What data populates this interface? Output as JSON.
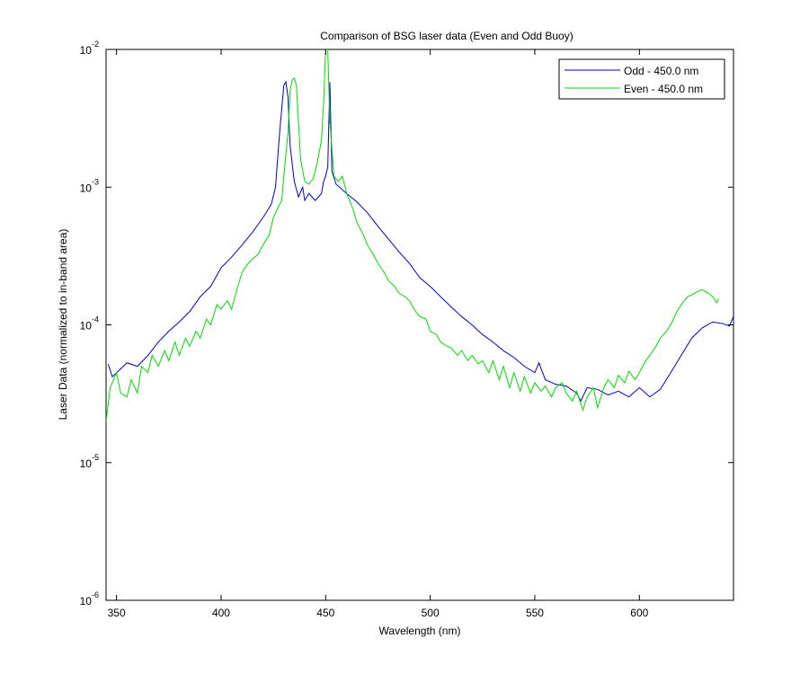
{
  "chart_data": {
    "type": "line",
    "title": "Comparison of BSG laser data (Even and Odd Buoy)",
    "xlabel": "Wavelength (nm)",
    "ylabel": "Laser Data (normalized to in-band area)",
    "xlim": [
      345,
      645
    ],
    "ylim": [
      1e-06,
      0.01
    ],
    "yscale": "log",
    "grid": false,
    "legend": "northeast",
    "xticks": [
      350,
      400,
      450,
      500,
      550,
      600
    ],
    "yticks": [
      {
        "value": 1e-06,
        "label": "10",
        "superscript": "-6"
      },
      {
        "value": 1e-05,
        "label": "10",
        "superscript": "-5"
      },
      {
        "value": 0.0001,
        "label": "10",
        "superscript": "-4"
      },
      {
        "value": 0.001,
        "label": "10",
        "superscript": "-3"
      },
      {
        "value": 0.01,
        "label": "10",
        "superscript": "-2"
      }
    ],
    "series": [
      {
        "name": "Odd - 450.0 nm",
        "color": "#0000c8",
        "x": [
          346,
          348,
          355,
          360,
          365,
          370,
          375,
          380,
          385,
          390,
          395,
          400,
          405,
          410,
          415,
          420,
          424,
          426,
          428,
          430,
          431,
          432,
          433,
          435,
          437,
          439,
          440,
          442,
          445,
          448,
          449,
          450,
          451,
          452,
          453,
          455,
          460,
          465,
          470,
          475,
          480,
          485,
          490,
          495,
          500,
          505,
          510,
          515,
          520,
          525,
          530,
          535,
          540,
          545,
          550,
          552,
          555,
          560,
          565,
          570,
          572,
          575,
          580,
          585,
          590,
          595,
          600,
          605,
          610,
          615,
          620,
          625,
          630,
          635,
          640,
          643,
          645
        ],
        "values": [
          5.2e-05,
          4.2e-05,
          5.3e-05,
          5e-05,
          6e-05,
          7.5e-05,
          9e-05,
          0.000105,
          0.000125,
          0.00016,
          0.00019,
          0.00026,
          0.00031,
          0.00038,
          0.00047,
          0.0006,
          0.00075,
          0.001,
          0.0025,
          0.0055,
          0.0058,
          0.0045,
          0.002,
          0.0011,
          0.00085,
          0.001,
          0.0008,
          0.0009,
          0.0008,
          0.0009,
          0.0011,
          0.0012,
          0.0014,
          0.0058,
          0.0013,
          0.00105,
          0.0009,
          0.00078,
          0.00065,
          0.00052,
          0.00042,
          0.00034,
          0.00028,
          0.00022,
          0.00019,
          0.00016,
          0.000135,
          0.000115,
          0.0001,
          8.5e-05,
          7.5e-05,
          6.5e-05,
          5.8e-05,
          5e-05,
          4.5e-05,
          5.3e-05,
          4e-05,
          3.7e-05,
          3.6e-05,
          3.2e-05,
          2.8e-05,
          3.5e-05,
          3.4e-05,
          3.1e-05,
          3.3e-05,
          3e-05,
          3.5e-05,
          3e-05,
          3.4e-05,
          4.5e-05,
          6e-05,
          8e-05,
          9.5e-05,
          0.000105,
          0.000102,
          9.8e-05,
          0.000115
        ]
      },
      {
        "name": "Even - 450.0 nm",
        "color": "#00dc00",
        "x": [
          345,
          347,
          350,
          352,
          355,
          357,
          360,
          362,
          365,
          367,
          370,
          373,
          375,
          378,
          380,
          383,
          385,
          388,
          390,
          393,
          395,
          398,
          400,
          403,
          405,
          408,
          410,
          413,
          415,
          418,
          420,
          423,
          425,
          427,
          429,
          430,
          432,
          433,
          434,
          435,
          436,
          437,
          438,
          440,
          442,
          444,
          446,
          448,
          449,
          450,
          451,
          452,
          454,
          456,
          458,
          460,
          463,
          465,
          468,
          470,
          473,
          475,
          478,
          480,
          483,
          485,
          488,
          490,
          493,
          495,
          498,
          500,
          503,
          505,
          508,
          510,
          513,
          515,
          518,
          520,
          523,
          525,
          528,
          530,
          533,
          535,
          538,
          540,
          543,
          545,
          548,
          550,
          553,
          555,
          558,
          560,
          563,
          565,
          568,
          570,
          573,
          575,
          578,
          580,
          583,
          585,
          588,
          590,
          593,
          595,
          598,
          600,
          603,
          605,
          608,
          610,
          613,
          615,
          618,
          620,
          623,
          625,
          628,
          630,
          633,
          635,
          637,
          638
        ],
        "values": [
          2e-05,
          3.5e-05,
          4.5e-05,
          3.2e-05,
          3e-05,
          4e-05,
          3.2e-05,
          5e-05,
          4.5e-05,
          6e-05,
          5e-05,
          6.5e-05,
          5.5e-05,
          7.5e-05,
          6e-05,
          8e-05,
          7e-05,
          9e-05,
          8e-05,
          0.00011,
          0.0001,
          0.00014,
          0.00013,
          0.00015,
          0.00013,
          0.00019,
          0.00024,
          0.00028,
          0.0003,
          0.00033,
          0.00038,
          0.00045,
          0.0006,
          0.0007,
          0.0008,
          0.0012,
          0.0025,
          0.005,
          0.006,
          0.0062,
          0.0055,
          0.003,
          0.0016,
          0.0011,
          0.00105,
          0.00115,
          0.0015,
          0.0022,
          0.004,
          0.01,
          0.01,
          0.003,
          0.0012,
          0.0011,
          0.0012,
          0.0009,
          0.0007,
          0.00055,
          0.00045,
          0.00038,
          0.00032,
          0.00028,
          0.00024,
          0.00021,
          0.00019,
          0.00017,
          0.00016,
          0.00015,
          0.000125,
          0.000115,
          0.00011,
          9e-05,
          8.5e-05,
          7.5e-05,
          7e-05,
          6.8e-05,
          6e-05,
          6.5e-05,
          5.5e-05,
          6e-05,
          5.2e-05,
          5.5e-05,
          4.5e-05,
          5.5e-05,
          4e-05,
          5e-05,
          3.5e-05,
          4.5e-05,
          3.3e-05,
          4.2e-05,
          3.2e-05,
          3.8e-05,
          3.3e-05,
          3.6e-05,
          3e-05,
          3.5e-05,
          3.8e-05,
          3.2e-05,
          2.8e-05,
          3.3e-05,
          2.4e-05,
          3e-05,
          3.5e-05,
          2.5e-05,
          3.5e-05,
          4e-05,
          3.5e-05,
          4.3e-05,
          3.8e-05,
          4.6e-05,
          4e-05,
          4.5e-05,
          5.5e-05,
          6e-05,
          7e-05,
          8e-05,
          9e-05,
          0.0001,
          0.000125,
          0.00014,
          0.00016,
          0.000165,
          0.000175,
          0.00018,
          0.00017,
          0.00016,
          0.000145,
          0.000155
        ]
      }
    ]
  }
}
